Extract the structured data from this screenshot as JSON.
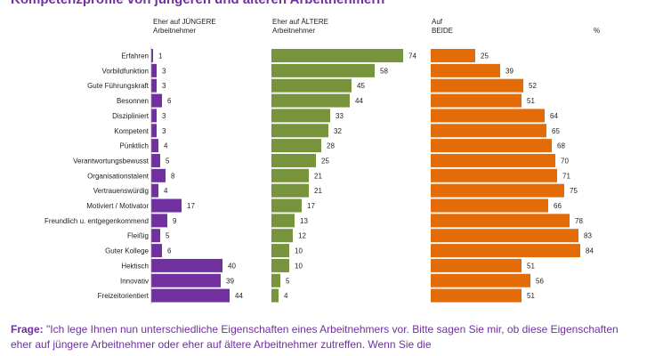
{
  "title": "Kompetenzprofile von jüngeren und älteren Arbeitnehmern",
  "headers": {
    "young": "Eher auf JÜNGERE\nArbeitnehmer",
    "old": "Eher auf ÄLTERE\nArbeitnehmer",
    "both": "Auf\nBEIDE",
    "percent": "%"
  },
  "footer": {
    "label": "Frage:",
    "text": " \"Ich lege Ihnen nun unterschiedliche Eigenschaften eines Arbeitnehmers vor. Bitte sagen Sie mir, ob diese Eigenschaften eher auf jüngere Arbeitnehmer oder eher auf ältere Arbeitnehmer zutreffen. Wenn Sie die"
  },
  "colors": {
    "young": "#7030a0",
    "old": "#77933c",
    "both": "#e36c09"
  },
  "chart_data": {
    "type": "bar",
    "categories": [
      "Erfahren",
      "Vorbildfunktion",
      "Gute Führungskraft",
      "Besonnen",
      "Diszipliniert",
      "Kompetent",
      "Pünktlich",
      "Verantwortungsbewusst",
      "Organisationstalent",
      "Vertrauenswürdig",
      "Motiviert / Motivator",
      "Freundlich u. entgegenkommend",
      "Fleißig",
      "Guter Kollege",
      "Hektisch",
      "Innovativ",
      "Freizeitorientiert"
    ],
    "series": [
      {
        "name": "Eher auf JÜNGERE Arbeitnehmer",
        "values": [
          1,
          3,
          3,
          6,
          3,
          3,
          4,
          5,
          8,
          4,
          17,
          9,
          5,
          6,
          40,
          39,
          44
        ]
      },
      {
        "name": "Eher auf ÄLTERE Arbeitnehmer",
        "values": [
          74,
          58,
          45,
          44,
          33,
          32,
          28,
          25,
          21,
          21,
          17,
          13,
          12,
          10,
          10,
          5,
          4
        ]
      },
      {
        "name": "Auf BEIDE",
        "values": [
          25,
          39,
          52,
          51,
          64,
          65,
          68,
          70,
          71,
          75,
          66,
          78,
          83,
          84,
          51,
          56,
          51
        ]
      }
    ],
    "unit": "%",
    "xlim": [
      0,
      100
    ]
  }
}
